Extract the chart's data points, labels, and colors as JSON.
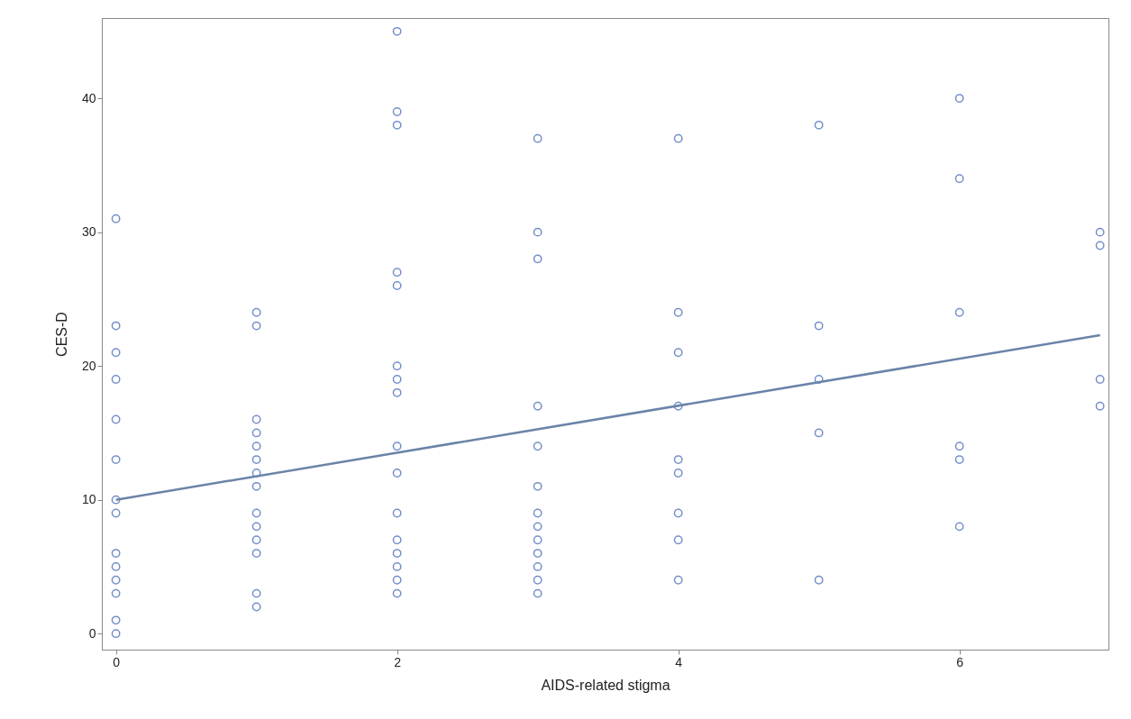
{
  "chart_data": {
    "type": "scatter",
    "xlabel": "AIDS-related stigma",
    "ylabel": "CES-D",
    "xlim": [
      -0.1,
      7.06
    ],
    "ylim": [
      -1.2,
      46
    ],
    "xticks": [
      0,
      2,
      4,
      6
    ],
    "yticks": [
      0,
      10,
      20,
      30,
      40
    ],
    "grid": false,
    "series": [
      {
        "color": "#3a5fb5",
        "marker": "circle",
        "x": [
          0,
          0,
          0,
          0,
          0,
          0,
          0,
          0,
          0,
          0,
          0,
          0,
          0,
          0,
          1,
          1,
          1,
          1,
          1,
          1,
          1,
          1,
          1,
          1,
          1,
          1,
          1,
          1,
          2,
          2,
          2,
          2,
          2,
          2,
          2,
          2,
          2,
          2,
          2,
          2,
          2,
          2,
          2,
          2,
          3,
          3,
          3,
          3,
          3,
          3,
          3,
          3,
          3,
          3,
          3,
          3,
          3,
          4,
          4,
          4,
          4,
          4,
          4,
          4,
          4,
          4,
          5,
          5,
          5,
          5,
          5,
          6,
          6,
          6,
          6,
          6,
          6,
          7,
          7,
          7,
          7
        ],
        "values": [
          31,
          23,
          21,
          19,
          16,
          13,
          10,
          9,
          6,
          5,
          4,
          3,
          1,
          0,
          24,
          23,
          16,
          15,
          14,
          13,
          12,
          11,
          9,
          8,
          7,
          6,
          3,
          2,
          45,
          39,
          38,
          27,
          26,
          20,
          19,
          18,
          14,
          12,
          9,
          7,
          6,
          5,
          4,
          3,
          37,
          30,
          28,
          17,
          14,
          11,
          9,
          8,
          7,
          6,
          5,
          4,
          3,
          37,
          24,
          21,
          17,
          13,
          12,
          9,
          7,
          4,
          38,
          23,
          19,
          15,
          4,
          40,
          34,
          24,
          14,
          13,
          8,
          30,
          29,
          19,
          17
        ]
      },
      {
        "type": "line",
        "color": "#6a84a8",
        "marker": "none",
        "x": [
          0,
          7
        ],
        "values": [
          10,
          22.3
        ]
      }
    ]
  }
}
